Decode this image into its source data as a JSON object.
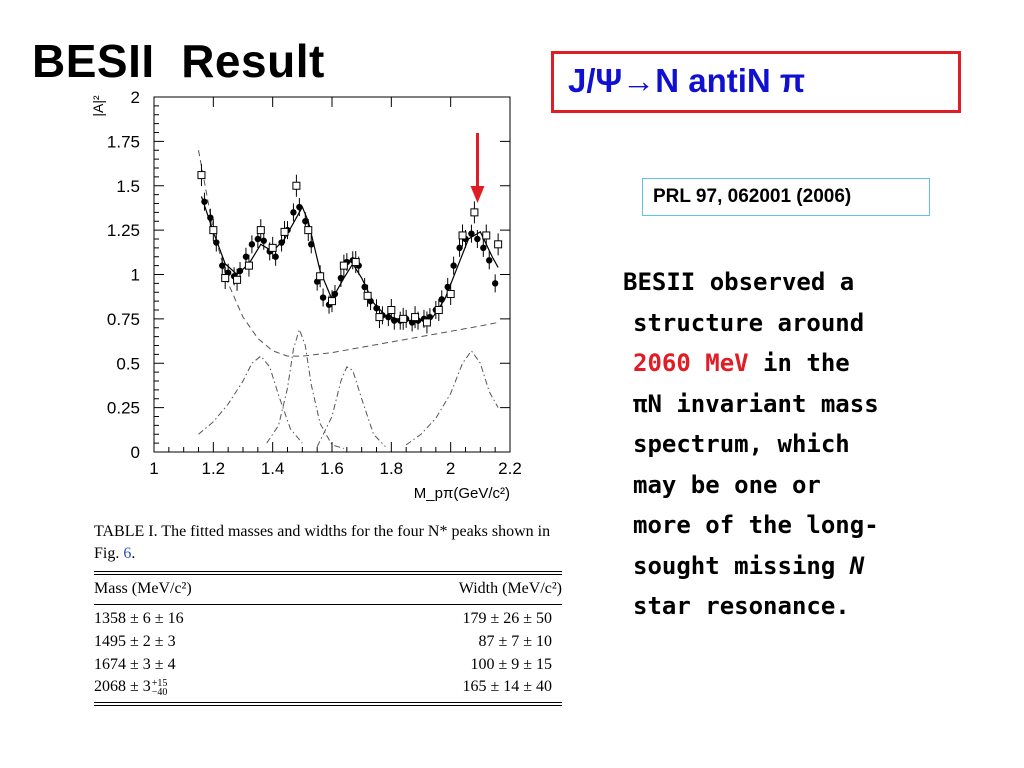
{
  "slide": {
    "title": "BESII  Result",
    "reaction_prefix": "J/Ψ",
    "reaction_arrow": "→",
    "reaction_suffix": "N antiN π",
    "reference": "PRL 97, 062001 (2006)",
    "description": {
      "line1": "BESII observed a",
      "line2": "structure around",
      "line3_red": "2060 MeV",
      "line3_rest": " in the",
      "line4_pi": "π",
      "line4_rest": "N invariant mass",
      "line5": "spectrum, which",
      "line6": "may be one or",
      "line7": "more of the long-",
      "line8_a": "sought missing ",
      "line8_it": "N",
      "line9": "star resonance."
    },
    "colors": {
      "red": "#e01c24",
      "blue": "#1010d0",
      "ref_border": "#5ec4e0"
    }
  },
  "chart_data": {
    "type": "scatter",
    "ylabel": "|A|²",
    "xlabel": "M_pπ(GeV/c²)",
    "xlim": [
      1,
      2.2
    ],
    "ylim": [
      0,
      2
    ],
    "x_ticks": [
      "1",
      "1.2",
      "1.4",
      "1.6",
      "1.8",
      "2",
      "2.2"
    ],
    "y_ticks": [
      "0",
      "0.25",
      "0.5",
      "0.75",
      "1",
      "1.25",
      "1.5",
      "1.75",
      "2"
    ],
    "annotation_arrow_x": 2.05,
    "series": [
      {
        "marker": "filled-circle",
        "x": [
          1.17,
          1.19,
          1.21,
          1.23,
          1.25,
          1.27,
          1.29,
          1.31,
          1.33,
          1.35,
          1.37,
          1.39,
          1.41,
          1.43,
          1.45,
          1.47,
          1.49,
          1.51,
          1.53,
          1.55,
          1.57,
          1.59,
          1.61,
          1.63,
          1.65,
          1.67,
          1.69,
          1.71,
          1.73,
          1.75,
          1.77,
          1.79,
          1.81,
          1.83,
          1.85,
          1.87,
          1.89,
          1.91,
          1.93,
          1.95,
          1.97,
          1.99,
          2.01,
          2.03,
          2.05,
          2.07,
          2.09,
          2.11,
          2.13,
          2.15
        ],
        "y": [
          1.41,
          1.32,
          1.18,
          1.05,
          1.01,
          0.99,
          1.02,
          1.1,
          1.17,
          1.2,
          1.19,
          1.13,
          1.1,
          1.18,
          1.25,
          1.35,
          1.38,
          1.3,
          1.17,
          0.96,
          0.87,
          0.83,
          0.89,
          0.98,
          1.07,
          1.08,
          1.05,
          0.93,
          0.85,
          0.81,
          0.77,
          0.76,
          0.74,
          0.74,
          0.75,
          0.73,
          0.74,
          0.75,
          0.76,
          0.8,
          0.86,
          0.93,
          1.05,
          1.15,
          1.2,
          1.23,
          1.2,
          1.15,
          1.08,
          0.95
        ]
      },
      {
        "marker": "open-square",
        "x": [
          1.16,
          1.2,
          1.24,
          1.28,
          1.32,
          1.36,
          1.4,
          1.44,
          1.48,
          1.52,
          1.56,
          1.6,
          1.64,
          1.68,
          1.72,
          1.76,
          1.8,
          1.84,
          1.88,
          1.92,
          1.96,
          2,
          2.04,
          2.08,
          2.12,
          2.16
        ],
        "y": [
          1.56,
          1.25,
          0.98,
          0.97,
          1.05,
          1.25,
          1.15,
          1.24,
          1.5,
          1.25,
          0.99,
          0.85,
          1.05,
          1.07,
          0.88,
          0.76,
          0.8,
          0.75,
          0.76,
          0.73,
          0.8,
          0.89,
          1.22,
          1.35,
          1.22,
          1.17
        ]
      },
      {
        "style": "solid",
        "name": "total fit",
        "x": [
          1.16,
          1.2,
          1.24,
          1.28,
          1.32,
          1.36,
          1.4,
          1.44,
          1.48,
          1.5,
          1.52,
          1.56,
          1.6,
          1.64,
          1.67,
          1.7,
          1.74,
          1.78,
          1.82,
          1.86,
          1.9,
          1.94,
          1.98,
          2.02,
          2.06,
          2.1,
          2.14,
          2.16
        ],
        "y": [
          1.44,
          1.24,
          1.06,
          1.0,
          1.06,
          1.17,
          1.13,
          1.2,
          1.32,
          1.38,
          1.3,
          1.02,
          0.86,
          0.98,
          1.06,
          0.98,
          0.84,
          0.77,
          0.75,
          0.74,
          0.74,
          0.76,
          0.86,
          1.03,
          1.2,
          1.24,
          1.1,
          1.04
        ]
      },
      {
        "style": "dashed",
        "name": "background",
        "x": [
          1.15,
          1.2,
          1.25,
          1.3,
          1.35,
          1.4,
          1.45,
          1.5,
          1.6,
          1.7,
          1.8,
          1.9,
          2.0,
          2.1,
          2.16
        ],
        "y": [
          1.7,
          1.25,
          0.95,
          0.76,
          0.64,
          0.57,
          0.54,
          0.54,
          0.56,
          0.59,
          0.62,
          0.65,
          0.68,
          0.71,
          0.73
        ]
      },
      {
        "style": "dash-dot",
        "name": "N* 1358",
        "x": [
          1.15,
          1.2,
          1.25,
          1.3,
          1.33,
          1.36,
          1.39,
          1.42,
          1.46,
          1.5
        ],
        "y": [
          0.1,
          0.17,
          0.27,
          0.4,
          0.5,
          0.54,
          0.48,
          0.32,
          0.13,
          0.05
        ]
      },
      {
        "style": "dash-dot",
        "name": "N* 1495",
        "x": [
          1.38,
          1.42,
          1.45,
          1.47,
          1.49,
          1.51,
          1.53,
          1.56,
          1.6,
          1.64
        ],
        "y": [
          0.05,
          0.15,
          0.36,
          0.58,
          0.69,
          0.6,
          0.38,
          0.16,
          0.04,
          0.02
        ]
      },
      {
        "style": "dash-dot",
        "name": "N* 1674",
        "x": [
          1.55,
          1.6,
          1.63,
          1.65,
          1.67,
          1.7,
          1.74,
          1.78
        ],
        "y": [
          0.03,
          0.2,
          0.4,
          0.48,
          0.46,
          0.3,
          0.1,
          0.03
        ]
      },
      {
        "style": "dash-dot",
        "name": "N* 2068",
        "x": [
          1.85,
          1.9,
          1.95,
          2.0,
          2.04,
          2.07,
          2.1,
          2.13,
          2.16
        ],
        "y": [
          0.04,
          0.1,
          0.19,
          0.33,
          0.5,
          0.57,
          0.5,
          0.34,
          0.25
        ]
      }
    ]
  },
  "table": {
    "caption_label": "TABLE I.",
    "caption_text": "   The fitted masses and widths for the four N* peaks shown in Fig. ",
    "caption_ref": "6",
    "caption_end": ".",
    "header": [
      "Mass (MeV/c²)",
      "Width (MeV/c²)"
    ],
    "rows": [
      [
        "1358 ± 6 ± 16",
        "179 ± 26 ± 50"
      ],
      [
        "1495 ± 2 ± 3",
        "87 ± 7 ± 10"
      ],
      [
        "1674 ± 3 ± 4",
        "100 ± 9 ± 15"
      ],
      [
        "2068 ± 3",
        "165 ± 14 ± 40"
      ]
    ],
    "row4_sup": "+15",
    "row4_sub": "−40"
  }
}
